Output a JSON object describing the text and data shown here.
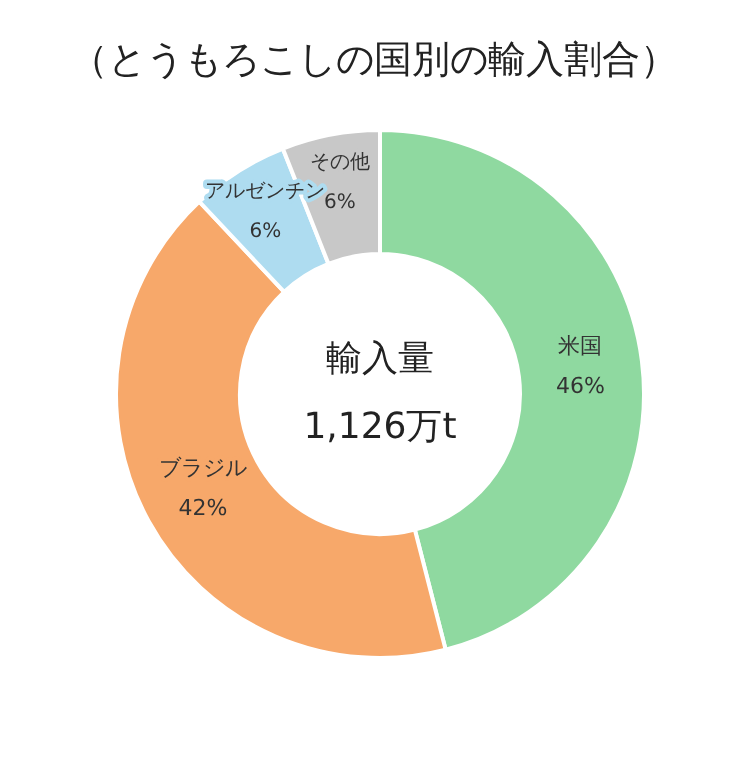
{
  "chart_data": {
    "type": "donut",
    "title": "（とうもろこしの国別の輸入割合）",
    "categories": [
      "米国",
      "ブラジル",
      "アルゼンチン",
      "その他"
    ],
    "values": [
      46,
      42,
      6,
      6
    ],
    "colors": [
      "#8fd9a0",
      "#f7a86a",
      "#aedcf0",
      "#c8c8c8"
    ],
    "value_labels": [
      "46%",
      "42%",
      "6%",
      "6%"
    ],
    "annotations": [
      "輸入量",
      "1,126万t"
    ]
  }
}
